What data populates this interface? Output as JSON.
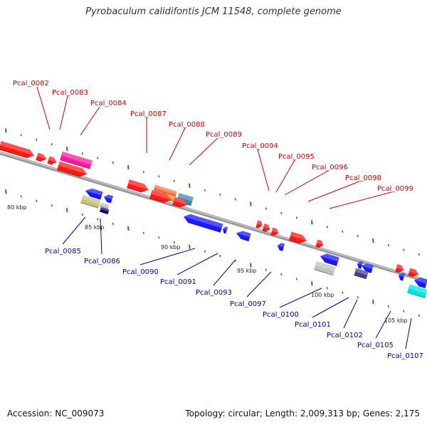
{
  "title": "Pyrobaculum calidifontis JCM 11548, complete genome",
  "accession": "Accession: NC_009073",
  "topology": "Topology: circular; Length: 2,009,313 bp; Genes: 2,175",
  "colors": {
    "forward_label": "#cc0000",
    "reverse_label": "#0000aa",
    "forward_gene": "#ff1a1a",
    "reverse_gene": "#1a1aff",
    "backbone": "#8c8c8c",
    "tick": "#1a8c1a"
  },
  "scale_labels": [
    {
      "text": "80 kbp",
      "kbp": 80
    },
    {
      "text": "85 kbp",
      "kbp": 85
    },
    {
      "text": "90 kbp",
      "kbp": 90
    },
    {
      "text": "95 kbp",
      "kbp": 95
    },
    {
      "text": "100 kbp",
      "kbp": 100
    },
    {
      "text": "105 kbp",
      "kbp": 105
    }
  ],
  "forward_genes": [
    {
      "label": "Pcal_0082",
      "color": "#ff1a1a"
    },
    {
      "label": "Pcal_0083",
      "color": "#ff1a1a"
    },
    {
      "label": "Pcal_0084",
      "color": "#ff1a1a"
    },
    {
      "label": "Pcal_0087",
      "color": "#ff1a1a"
    },
    {
      "label": "Pcal_0088",
      "color": "#ff8c1a"
    },
    {
      "label": "Pcal_0089",
      "color": "#4682b4"
    },
    {
      "label": "Pcal_0094",
      "color": "#ff1a1a"
    },
    {
      "label": "Pcal_0095",
      "color": "#ff1a1a"
    },
    {
      "label": "Pcal_0096",
      "color": "#ff1a1a"
    },
    {
      "label": "Pcal_0098",
      "color": "#ff1a1a"
    },
    {
      "label": "Pcal_0099",
      "color": "#ff1a1a"
    }
  ],
  "reverse_genes": [
    {
      "label": "Pcal_0085",
      "color": "#c8c080"
    },
    {
      "label": "Pcal_0086",
      "color": "#000080"
    },
    {
      "label": "Pcal_0090",
      "color": "#1a1aff"
    },
    {
      "label": "Pcal_0091",
      "color": "#1a1aff"
    },
    {
      "label": "Pcal_0093",
      "color": "#1a1aff"
    },
    {
      "label": "Pcal_0097",
      "color": "#1a1aff"
    },
    {
      "label": "Pcal_0100",
      "color": "#c0c0c0"
    },
    {
      "label": "Pcal_0101",
      "color": "#1a1aff"
    },
    {
      "label": "Pcal_0102",
      "color": "#4b3c8c"
    },
    {
      "label": "Pcal_0105",
      "color": "#1a1aff"
    },
    {
      "label": "Pcal_0107",
      "color": "#00e5e5"
    }
  ]
}
